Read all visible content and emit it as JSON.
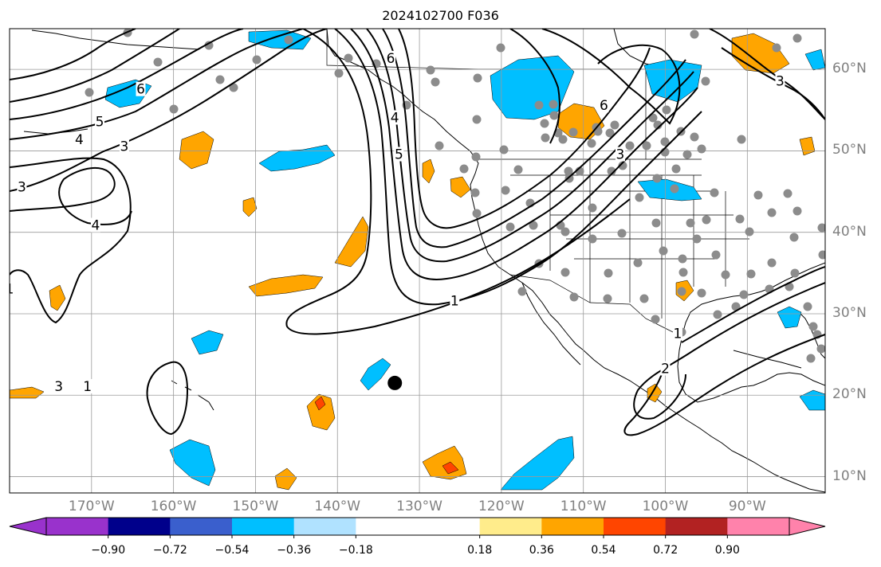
{
  "title": "2024102700 F036",
  "map": {
    "projection": "PlateCarree",
    "lon_range": [
      -180,
      -80.5
    ],
    "lat_range": [
      8,
      65
    ],
    "gridlines": true,
    "lon_ticks": [
      {
        "value": -170,
        "label": "170°W"
      },
      {
        "value": -160,
        "label": "160°W"
      },
      {
        "value": -150,
        "label": "150°W"
      },
      {
        "value": -140,
        "label": "140°W"
      },
      {
        "value": -130,
        "label": "130°W"
      },
      {
        "value": -120,
        "label": "120°W"
      },
      {
        "value": -110,
        "label": "110°W"
      },
      {
        "value": -100,
        "label": "100°W"
      },
      {
        "value": -90,
        "label": "90°W"
      }
    ],
    "lat_ticks": [
      {
        "value": 60,
        "label": "60°N"
      },
      {
        "value": 50,
        "label": "50°N"
      },
      {
        "value": 40,
        "label": "40°N"
      },
      {
        "value": 30,
        "label": "30°N"
      },
      {
        "value": 20,
        "label": "20°N"
      },
      {
        "value": 10,
        "label": "10°N"
      }
    ],
    "marker": {
      "lon": -133,
      "lat": 21.5,
      "color": "#000000"
    }
  },
  "colorbar": {
    "colors": [
      "#9932cc",
      "#00008b",
      "#3a5fcd",
      "#00bfff",
      "#b0e2ff",
      "#ffffff",
      "#ffffff",
      "#ffec8b",
      "#ffa500",
      "#ff4500",
      "#b22222",
      "#ff82ab"
    ],
    "tick_values": [
      -0.9,
      -0.72,
      -0.54,
      -0.36,
      -0.18,
      0.18,
      0.36,
      0.54,
      0.72,
      0.9
    ],
    "tick_labels": [
      "−0.90",
      "−0.72",
      "−0.54",
      "−0.36",
      "−0.18",
      "0.18",
      "0.36",
      "0.54",
      "0.72",
      "0.90"
    ],
    "extend": "both"
  },
  "contour_labels": [
    {
      "text": "6",
      "lon": -164,
      "lat": 57.5
    },
    {
      "text": "5",
      "lon": -169,
      "lat": 53.5
    },
    {
      "text": "4",
      "lon": -171.5,
      "lat": 51.3
    },
    {
      "text": "3",
      "lon": -166,
      "lat": 50.5
    },
    {
      "text": "3",
      "lon": -174,
      "lat": 21
    },
    {
      "text": "3",
      "lon": -178.5,
      "lat": 45.5
    },
    {
      "text": "4",
      "lon": -169.5,
      "lat": 40.8
    },
    {
      "text": "1",
      "lon": -180,
      "lat": 33
    },
    {
      "text": "6",
      "lon": -133.5,
      "lat": 61.3
    },
    {
      "text": "4",
      "lon": -133,
      "lat": 54
    },
    {
      "text": "5",
      "lon": -132.5,
      "lat": 49.5
    },
    {
      "text": "1",
      "lon": -125.7,
      "lat": 31.5
    },
    {
      "text": "1",
      "lon": -170.5,
      "lat": 21
    },
    {
      "text": "6",
      "lon": -107.5,
      "lat": 55.5
    },
    {
      "text": "3",
      "lon": -105.5,
      "lat": 49.5
    },
    {
      "text": "2",
      "lon": -100,
      "lat": 23.2
    },
    {
      "text": "1",
      "lon": -98.5,
      "lat": 27.5
    },
    {
      "text": "3",
      "lon": -86,
      "lat": 58.5
    }
  ]
}
